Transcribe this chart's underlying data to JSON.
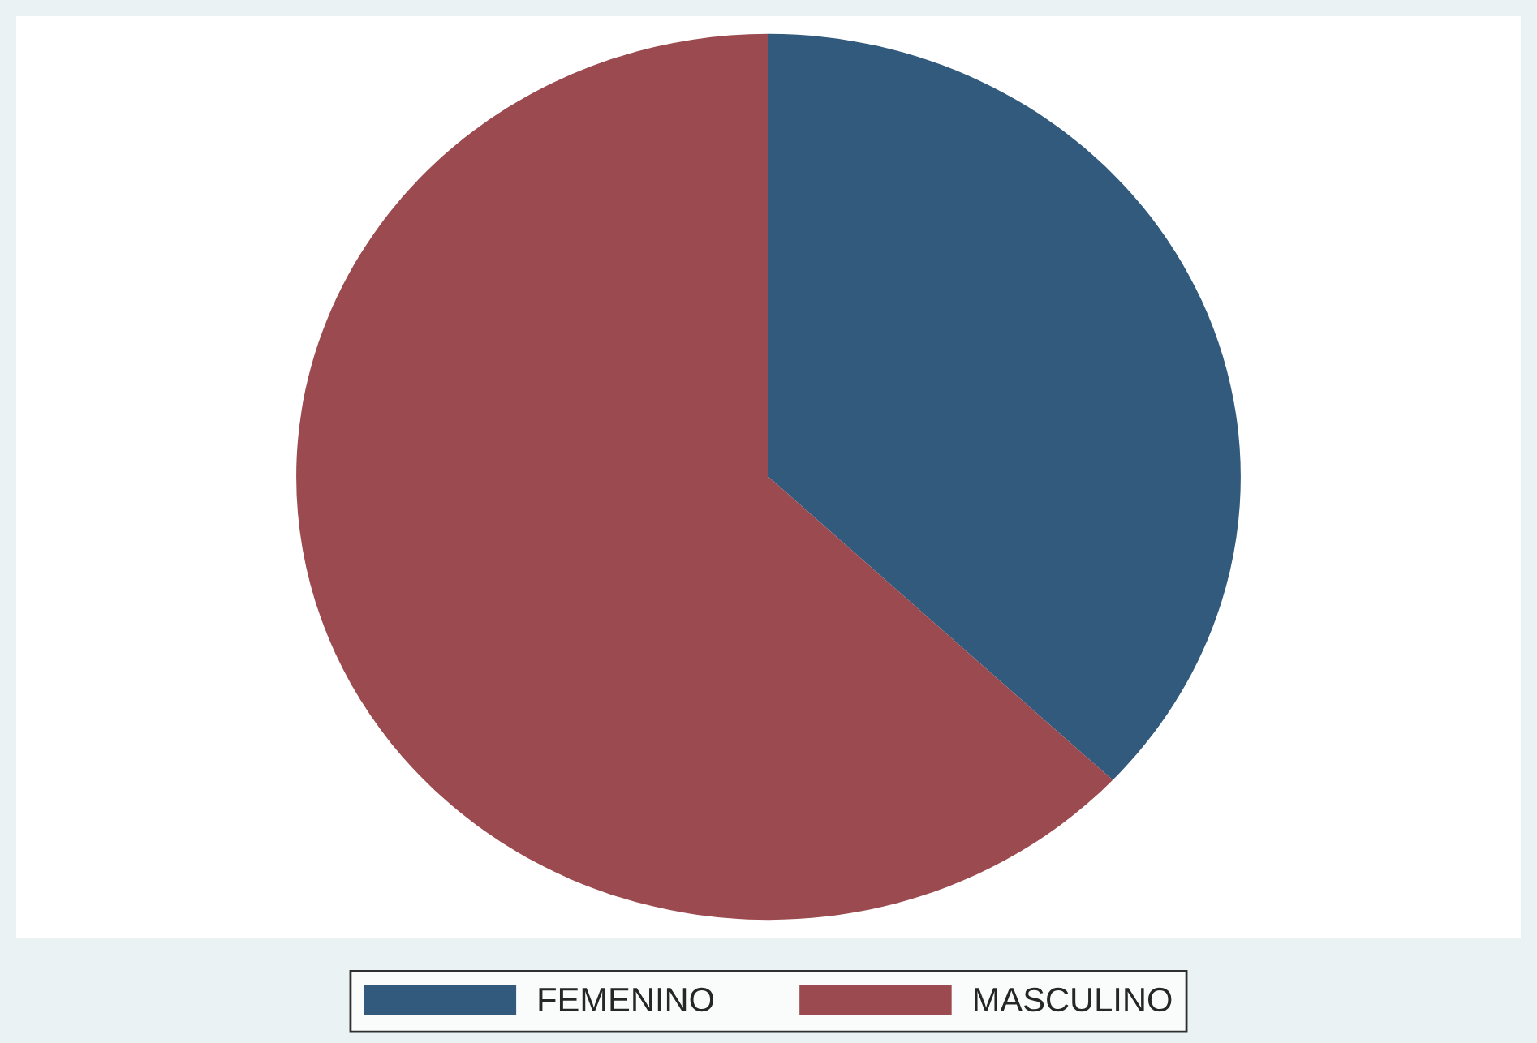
{
  "chart_data": {
    "type": "pie",
    "categories": [
      "FEMENINO",
      "MASCULINO"
    ],
    "values": [
      37,
      63
    ],
    "colors": [
      "#325a7c",
      "#9b4a4f"
    ],
    "legend": "bottom"
  }
}
